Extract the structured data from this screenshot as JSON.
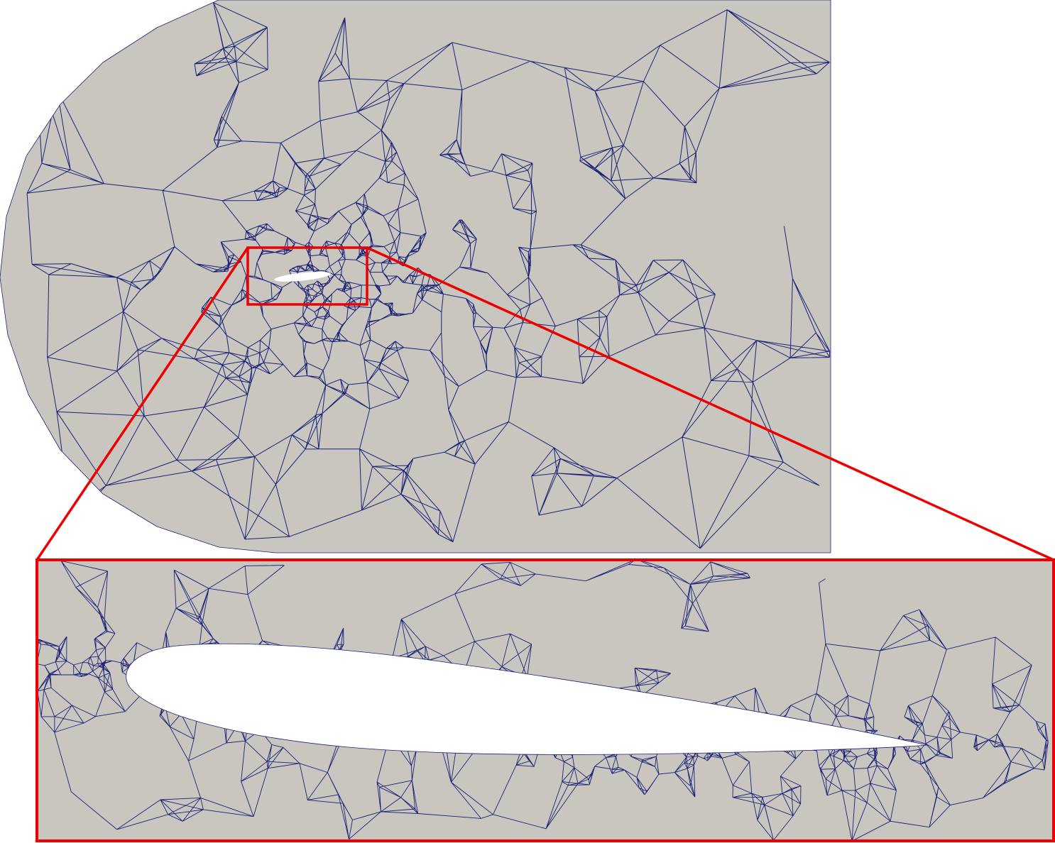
{
  "figure": {
    "subject": "airfoil-mesh",
    "colors": {
      "background": "#ffffff",
      "domain_fill": "#c8c6be",
      "mesh_edge": "#1c2178",
      "highlight": "#ee0000",
      "airfoil_fill": "#ffffff"
    }
  }
}
